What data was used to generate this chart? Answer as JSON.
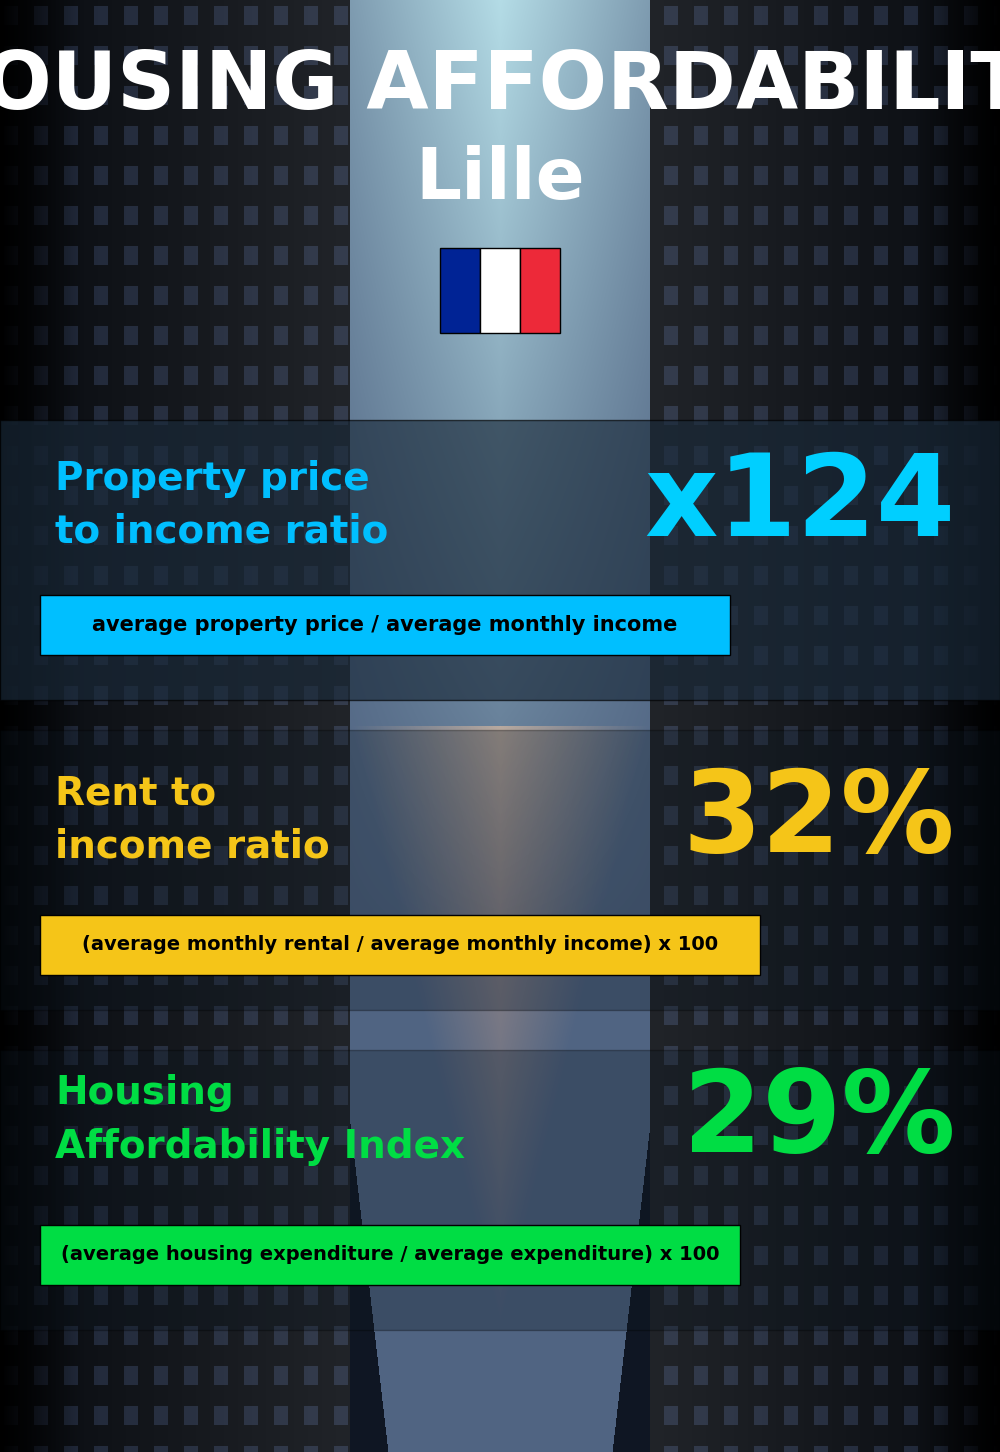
{
  "title_main": "HOUSING AFFORDABILITY",
  "title_city": "Lille",
  "bg_color": "#0a1628",
  "section1_label": "Property price\nto income ratio",
  "section1_value": "x124",
  "section1_label_color": "#00bfff",
  "section1_value_color": "#00cfff",
  "section1_sub": "average property price / average monthly income",
  "section1_sub_bg": "#00bfff",
  "section2_label": "Rent to\nincome ratio",
  "section2_value": "32%",
  "section2_label_color": "#f5c518",
  "section2_value_color": "#f5c518",
  "section2_sub": "(average monthly rental / average monthly income) x 100",
  "section2_sub_bg": "#f5c518",
  "section3_label": "Housing\nAffordability Index",
  "section3_value": "29%",
  "section3_label_color": "#00dd44",
  "section3_value_color": "#00dd44",
  "section3_sub": "(average housing expenditure / average expenditure) x 100",
  "section3_sub_bg": "#00dd44",
  "flag_blue": "#002395",
  "flag_white": "#ffffff",
  "flag_red": "#ED2939",
  "title_color": "#ffffff",
  "sub_text_color": "#000000"
}
